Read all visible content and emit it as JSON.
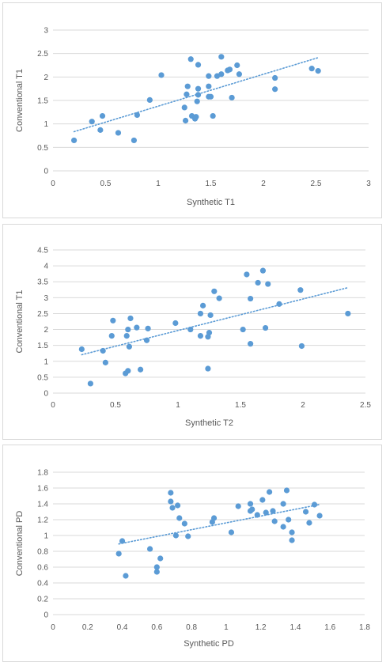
{
  "chart_data": [
    {
      "type": "scatter",
      "xlabel": "Synthetic T1",
      "ylabel": "Conventional T1",
      "xlim": [
        0,
        3
      ],
      "ylim": [
        0,
        3
      ],
      "xticks": [
        "0",
        "0.5",
        "1",
        "1.5",
        "2",
        "2.5",
        "3"
      ],
      "yticks": [
        "0",
        "0.5",
        "1",
        "1.5",
        "2",
        "2.5",
        "3"
      ],
      "grid": "horizontal",
      "trendline": "linear, dotted",
      "marker_color": "#5b9bd5",
      "points": [
        [
          0.2,
          0.65
        ],
        [
          0.37,
          1.05
        ],
        [
          0.45,
          0.87
        ],
        [
          0.47,
          1.17
        ],
        [
          0.62,
          0.81
        ],
        [
          0.77,
          0.65
        ],
        [
          0.8,
          1.19
        ],
        [
          0.92,
          1.51
        ],
        [
          1.03,
          2.04
        ],
        [
          1.25,
          1.35
        ],
        [
          1.26,
          1.07
        ],
        [
          1.27,
          1.63
        ],
        [
          1.28,
          1.8
        ],
        [
          1.31,
          2.38
        ],
        [
          1.32,
          1.17
        ],
        [
          1.35,
          1.11
        ],
        [
          1.36,
          1.15
        ],
        [
          1.37,
          1.48
        ],
        [
          1.38,
          1.62
        ],
        [
          1.38,
          1.75
        ],
        [
          1.38,
          2.26
        ],
        [
          1.48,
          1.58
        ],
        [
          1.48,
          1.8
        ],
        [
          1.48,
          2.02
        ],
        [
          1.5,
          1.58
        ],
        [
          1.52,
          1.17
        ],
        [
          1.56,
          2.02
        ],
        [
          1.6,
          2.43
        ],
        [
          1.6,
          2.06
        ],
        [
          1.66,
          2.14
        ],
        [
          1.68,
          2.16
        ],
        [
          1.7,
          1.56
        ],
        [
          1.75,
          2.25
        ],
        [
          1.77,
          2.06
        ],
        [
          2.11,
          1.98
        ],
        [
          2.11,
          1.74
        ],
        [
          2.46,
          2.18
        ],
        [
          2.52,
          2.13
        ]
      ]
    },
    {
      "type": "scatter",
      "xlabel": "Synthetic T2",
      "ylabel": "Conventional T1",
      "xlim": [
        0,
        2.5
      ],
      "ylim": [
        0,
        4.5
      ],
      "xticks": [
        "0",
        "0.5",
        "1",
        "1.5",
        "2",
        "2.5"
      ],
      "yticks": [
        "0",
        "0.5",
        "1",
        "1.5",
        "2",
        "2.5",
        "3",
        "3.5",
        "4",
        "4.5"
      ],
      "grid": "horizontal",
      "trendline": "linear, dotted",
      "marker_color": "#5b9bd5",
      "points": [
        [
          0.23,
          1.38
        ],
        [
          0.3,
          0.3
        ],
        [
          0.4,
          1.33
        ],
        [
          0.42,
          0.96
        ],
        [
          0.47,
          1.8
        ],
        [
          0.48,
          2.28
        ],
        [
          0.58,
          0.62
        ],
        [
          0.59,
          1.8
        ],
        [
          0.6,
          0.7
        ],
        [
          0.6,
          2.0
        ],
        [
          0.61,
          1.46
        ],
        [
          0.62,
          2.35
        ],
        [
          0.67,
          2.06
        ],
        [
          0.7,
          0.74
        ],
        [
          0.75,
          1.66
        ],
        [
          0.76,
          2.03
        ],
        [
          0.98,
          2.2
        ],
        [
          1.1,
          2.0
        ],
        [
          1.18,
          2.5
        ],
        [
          1.18,
          1.8
        ],
        [
          1.2,
          2.75
        ],
        [
          1.24,
          0.77
        ],
        [
          1.24,
          1.77
        ],
        [
          1.25,
          1.9
        ],
        [
          1.26,
          2.45
        ],
        [
          1.29,
          3.2
        ],
        [
          1.33,
          2.98
        ],
        [
          1.52,
          2.0
        ],
        [
          1.55,
          3.73
        ],
        [
          1.58,
          2.97
        ],
        [
          1.58,
          1.55
        ],
        [
          1.64,
          3.47
        ],
        [
          1.68,
          3.85
        ],
        [
          1.7,
          2.05
        ],
        [
          1.72,
          3.43
        ],
        [
          1.81,
          2.8
        ],
        [
          1.98,
          3.24
        ],
        [
          1.99,
          1.48
        ],
        [
          2.36,
          2.5
        ]
      ]
    },
    {
      "type": "scatter",
      "xlabel": "Synthetic PD",
      "ylabel": "Conventional PD",
      "xlim": [
        0,
        1.8
      ],
      "ylim": [
        0,
        1.8
      ],
      "xticks": [
        "0",
        "0.2",
        "0.4",
        "0.6",
        "0.8",
        "1",
        "1.2",
        "1.4",
        "1.6",
        "1.8"
      ],
      "yticks": [
        "0",
        "0.2",
        "0.4",
        "0.6",
        "0.8",
        "1",
        "1.2",
        "1.4",
        "1.6",
        "1.8"
      ],
      "grid": "horizontal",
      "trendline": "linear, dotted",
      "marker_color": "#5b9bd5",
      "points": [
        [
          0.38,
          0.77
        ],
        [
          0.4,
          0.93
        ],
        [
          0.42,
          0.49
        ],
        [
          0.56,
          0.83
        ],
        [
          0.6,
          0.6
        ],
        [
          0.6,
          0.54
        ],
        [
          0.62,
          0.71
        ],
        [
          0.68,
          1.54
        ],
        [
          0.68,
          1.43
        ],
        [
          0.69,
          1.35
        ],
        [
          0.71,
          1.0
        ],
        [
          0.72,
          1.38
        ],
        [
          0.73,
          1.22
        ],
        [
          0.76,
          1.15
        ],
        [
          0.78,
          0.99
        ],
        [
          0.92,
          1.17
        ],
        [
          0.93,
          1.22
        ],
        [
          1.03,
          1.04
        ],
        [
          1.07,
          1.37
        ],
        [
          1.14,
          1.4
        ],
        [
          1.14,
          1.31
        ],
        [
          1.15,
          1.33
        ],
        [
          1.18,
          1.26
        ],
        [
          1.21,
          1.45
        ],
        [
          1.23,
          1.29
        ],
        [
          1.25,
          1.55
        ],
        [
          1.27,
          1.31
        ],
        [
          1.28,
          1.18
        ],
        [
          1.33,
          1.4
        ],
        [
          1.33,
          1.11
        ],
        [
          1.35,
          1.57
        ],
        [
          1.36,
          1.2
        ],
        [
          1.38,
          0.94
        ],
        [
          1.38,
          1.04
        ],
        [
          1.46,
          1.3
        ],
        [
          1.48,
          1.16
        ],
        [
          1.51,
          1.39
        ],
        [
          1.54,
          1.25
        ]
      ]
    }
  ]
}
